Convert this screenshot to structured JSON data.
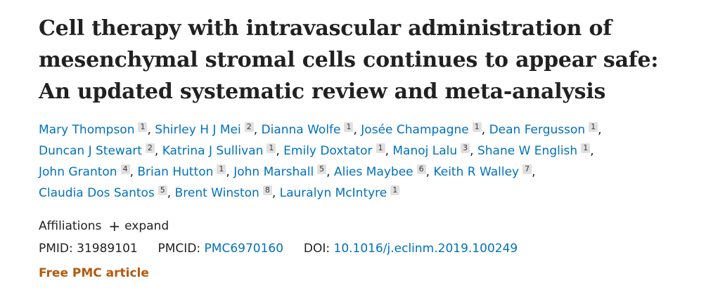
{
  "article": {
    "title_lines": [
      "Cell therapy with intravascular administration of",
      "mesenchymal stromal cells continues to appear safe:",
      "An updated systematic review and meta-analysis"
    ]
  },
  "authors": [
    [
      {
        "name": "Mary Thompson",
        "aff": "1",
        "sep": ","
      },
      {
        "name": "Shirley H J Mei",
        "aff": "2",
        "sep": ","
      },
      {
        "name": "Dianna Wolfe",
        "aff": "1",
        "sep": ","
      },
      {
        "name": "Josée Champagne",
        "aff": "1",
        "sep": ","
      },
      {
        "name": "Dean Fergusson",
        "aff": "1",
        "sep": ","
      }
    ],
    [
      {
        "name": "Duncan J Stewart",
        "aff": "2",
        "sep": ","
      },
      {
        "name": "Katrina J Sullivan",
        "aff": "1",
        "sep": ","
      },
      {
        "name": "Emily Doxtator",
        "aff": "1",
        "sep": ","
      },
      {
        "name": "Manoj Lalu",
        "aff": "3",
        "sep": ","
      },
      {
        "name": "Shane W English",
        "aff": "1",
        "sep": ","
      }
    ],
    [
      {
        "name": "John Granton",
        "aff": "4",
        "sep": ","
      },
      {
        "name": "Brian Hutton",
        "aff": "1",
        "sep": ","
      },
      {
        "name": "John Marshall",
        "aff": "5",
        "sep": ","
      },
      {
        "name": "Alies Maybee",
        "aff": "6",
        "sep": ","
      },
      {
        "name": "Keith R Walley",
        "aff": "7",
        "sep": ","
      }
    ],
    [
      {
        "name": "Claudia Dos Santos",
        "aff": "5",
        "sep": ","
      },
      {
        "name": "Brent Winston",
        "aff": "8",
        "sep": ","
      },
      {
        "name": "Lauralyn McIntyre",
        "aff": "1",
        "sep": ""
      }
    ]
  ],
  "affiliations": {
    "label": "Affiliations",
    "expand_label": "expand",
    "expand_icon": "plus-icon"
  },
  "identifiers": {
    "pmid_label": "PMID:",
    "pmid": "31989101",
    "pmcid_label": "PMCID:",
    "pmcid": "PMC6970160",
    "doi_label": "DOI:",
    "doi": "10.1016/j.eclinm.2019.100249"
  },
  "free_article": "Free PMC article",
  "colors": {
    "link": "#0071bc",
    "free_article": "#b35a0f",
    "text": "#212121",
    "badge_bg": "#e0e0e0"
  }
}
